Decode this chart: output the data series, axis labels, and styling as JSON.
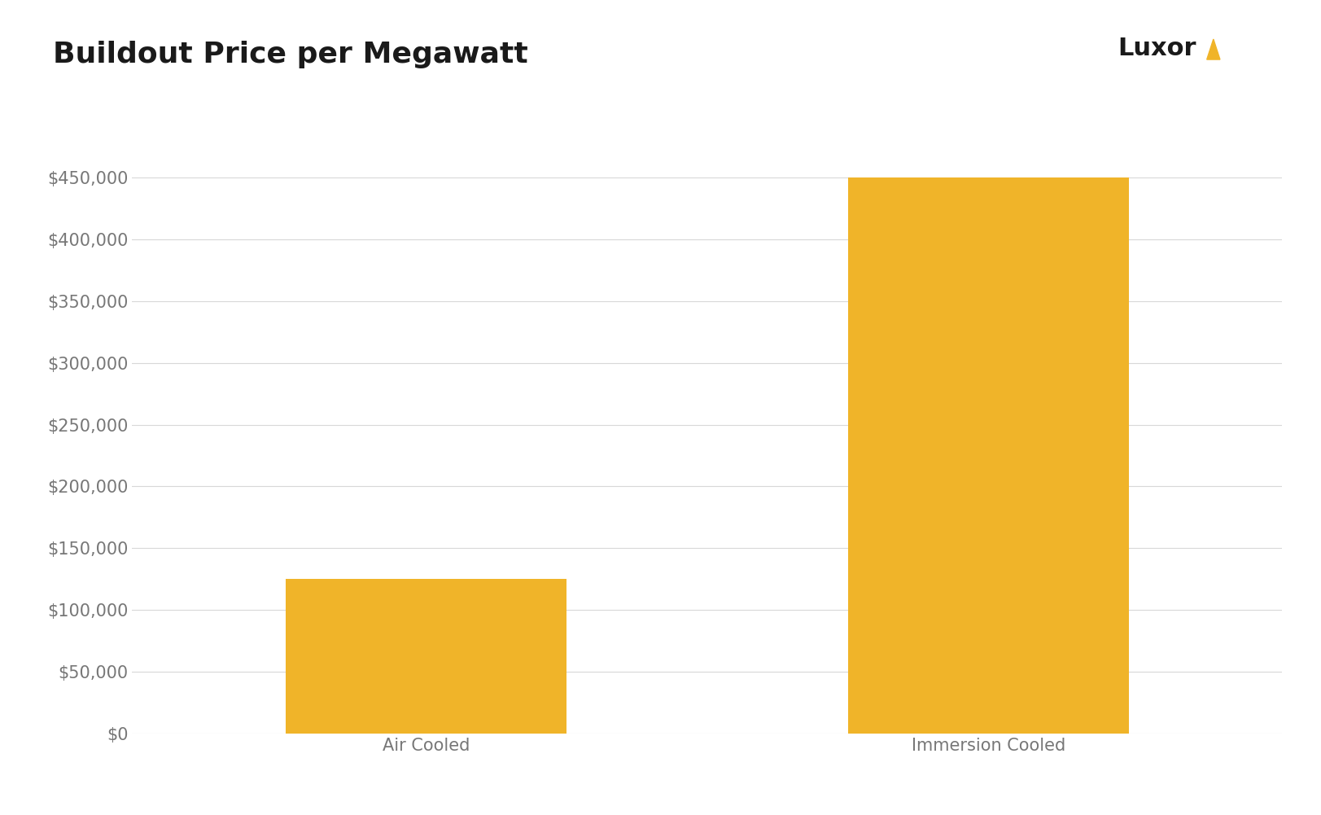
{
  "title": "Buildout Price per Megawatt",
  "categories": [
    "Air Cooled",
    "Immersion Cooled"
  ],
  "values": [
    125000,
    450000
  ],
  "bar_color": "#F0B429",
  "background_color": "#FFFFFF",
  "ylim": [
    0,
    475000
  ],
  "ytick_values": [
    0,
    50000,
    100000,
    150000,
    200000,
    250000,
    300000,
    350000,
    400000,
    450000
  ],
  "title_fontsize": 26,
  "tick_fontsize": 15,
  "bar_width": 0.22,
  "luxor_text": "Luxor",
  "luxor_fontsize": 22,
  "grid_color": "#D8D8D8",
  "tick_color": "#777777",
  "title_color": "#1a1a1a",
  "x_positions": [
    0.28,
    0.72
  ]
}
